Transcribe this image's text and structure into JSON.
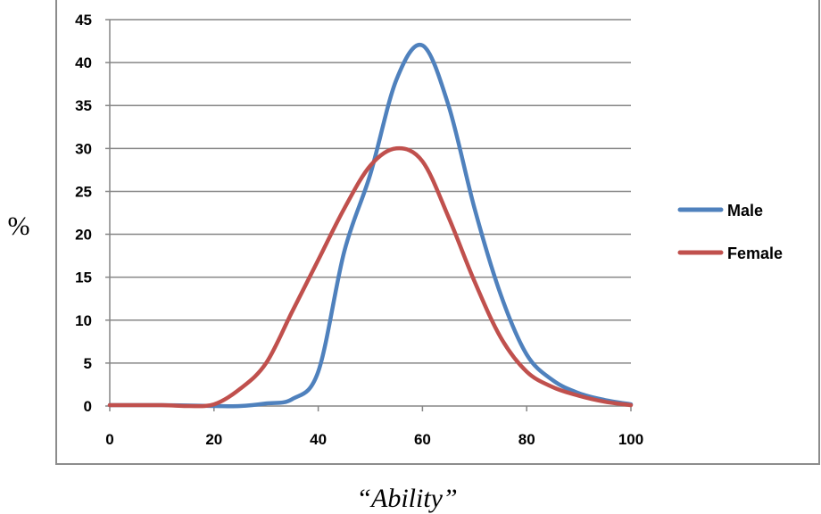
{
  "chart_data": {
    "type": "line",
    "title": "",
    "xlabel": "“Ability”",
    "ylabel": "%",
    "xlim": [
      0,
      100
    ],
    "ylim": [
      0,
      45
    ],
    "x_ticks": [
      0,
      20,
      40,
      60,
      80,
      100
    ],
    "y_ticks": [
      0,
      5,
      10,
      15,
      20,
      25,
      30,
      35,
      40,
      45
    ],
    "grid": "horizontal",
    "legend_position": "right",
    "series": [
      {
        "name": "Male",
        "color": "#4F81BD",
        "x": [
          0,
          10,
          20,
          25,
          30,
          35,
          40,
          45,
          50,
          55,
          60,
          65,
          70,
          75,
          80,
          85,
          90,
          95,
          100
        ],
        "y": [
          0.1,
          0.1,
          0.0,
          0.0,
          0.3,
          0.8,
          4,
          18,
          27,
          38,
          42,
          35,
          23,
          13,
          6,
          3,
          1.5,
          0.7,
          0.2
        ]
      },
      {
        "name": "Female",
        "color": "#C0504D",
        "x": [
          0,
          10,
          15,
          20,
          25,
          30,
          35,
          40,
          45,
          50,
          55,
          60,
          65,
          70,
          75,
          80,
          85,
          90,
          95,
          100
        ],
        "y": [
          0.1,
          0.1,
          0.0,
          0.2,
          2,
          5,
          11,
          17,
          23,
          28,
          30,
          28.5,
          22,
          14.5,
          8,
          4,
          2.2,
          1.2,
          0.5,
          0.1
        ]
      }
    ]
  }
}
